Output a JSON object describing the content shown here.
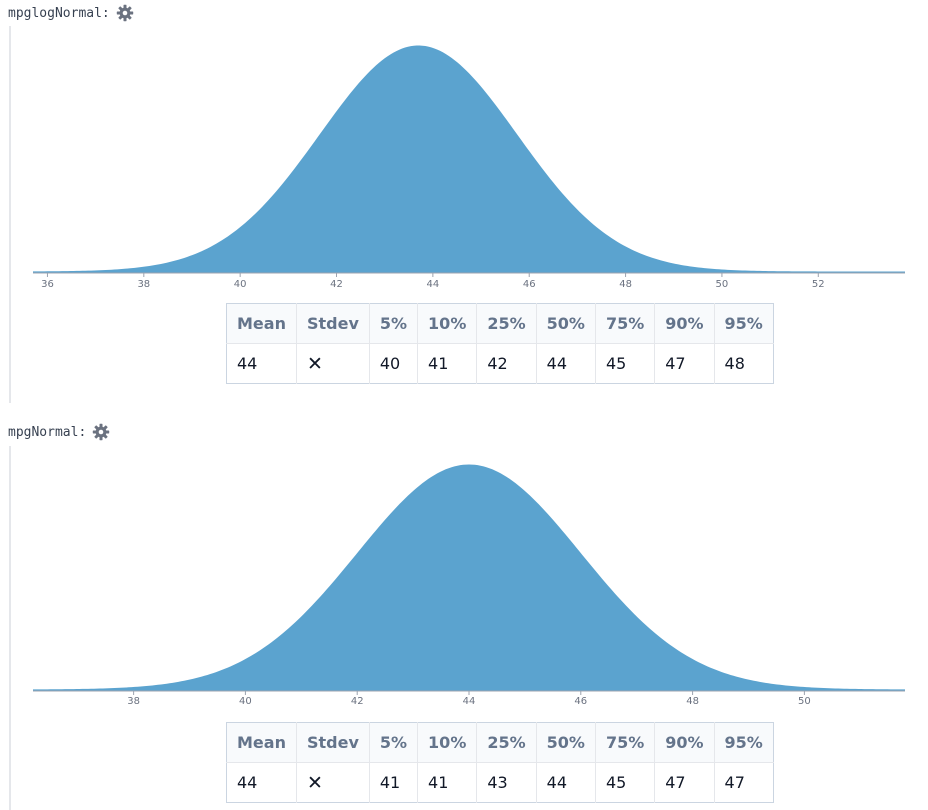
{
  "colors": {
    "fill": "#5ba3cf",
    "axis": "#9ca3af"
  },
  "icons": {
    "settings": "gear-icon"
  },
  "distributions": [
    {
      "name": "mpglogNormal:",
      "stats": {
        "headers": [
          "Mean",
          "Stdev",
          "5%",
          "10%",
          "25%",
          "50%",
          "75%",
          "90%",
          "95%"
        ],
        "values": [
          "44",
          "✕",
          "40",
          "41",
          "42",
          "44",
          "45",
          "47",
          "48"
        ]
      }
    },
    {
      "name": "mpgNormal:",
      "stats": {
        "headers": [
          "Mean",
          "Stdev",
          "5%",
          "10%",
          "25%",
          "50%",
          "75%",
          "90%",
          "95%"
        ],
        "values": [
          "44",
          "✕",
          "41",
          "41",
          "43",
          "44",
          "45",
          "47",
          "47"
        ]
      }
    }
  ],
  "chart_data": [
    {
      "type": "area",
      "xlim": [
        35.7,
        53.8
      ],
      "x_ticks": [
        36,
        38,
        40,
        42,
        44,
        46,
        48,
        50,
        52
      ],
      "peak_x": 43.7,
      "sd": 2.05,
      "grid": false
    },
    {
      "type": "area",
      "xlim": [
        36.2,
        51.8
      ],
      "x_ticks": [
        38,
        40,
        42,
        44,
        46,
        48,
        50
      ],
      "peak_x": 44.0,
      "sd": 2.0,
      "grid": false
    }
  ]
}
